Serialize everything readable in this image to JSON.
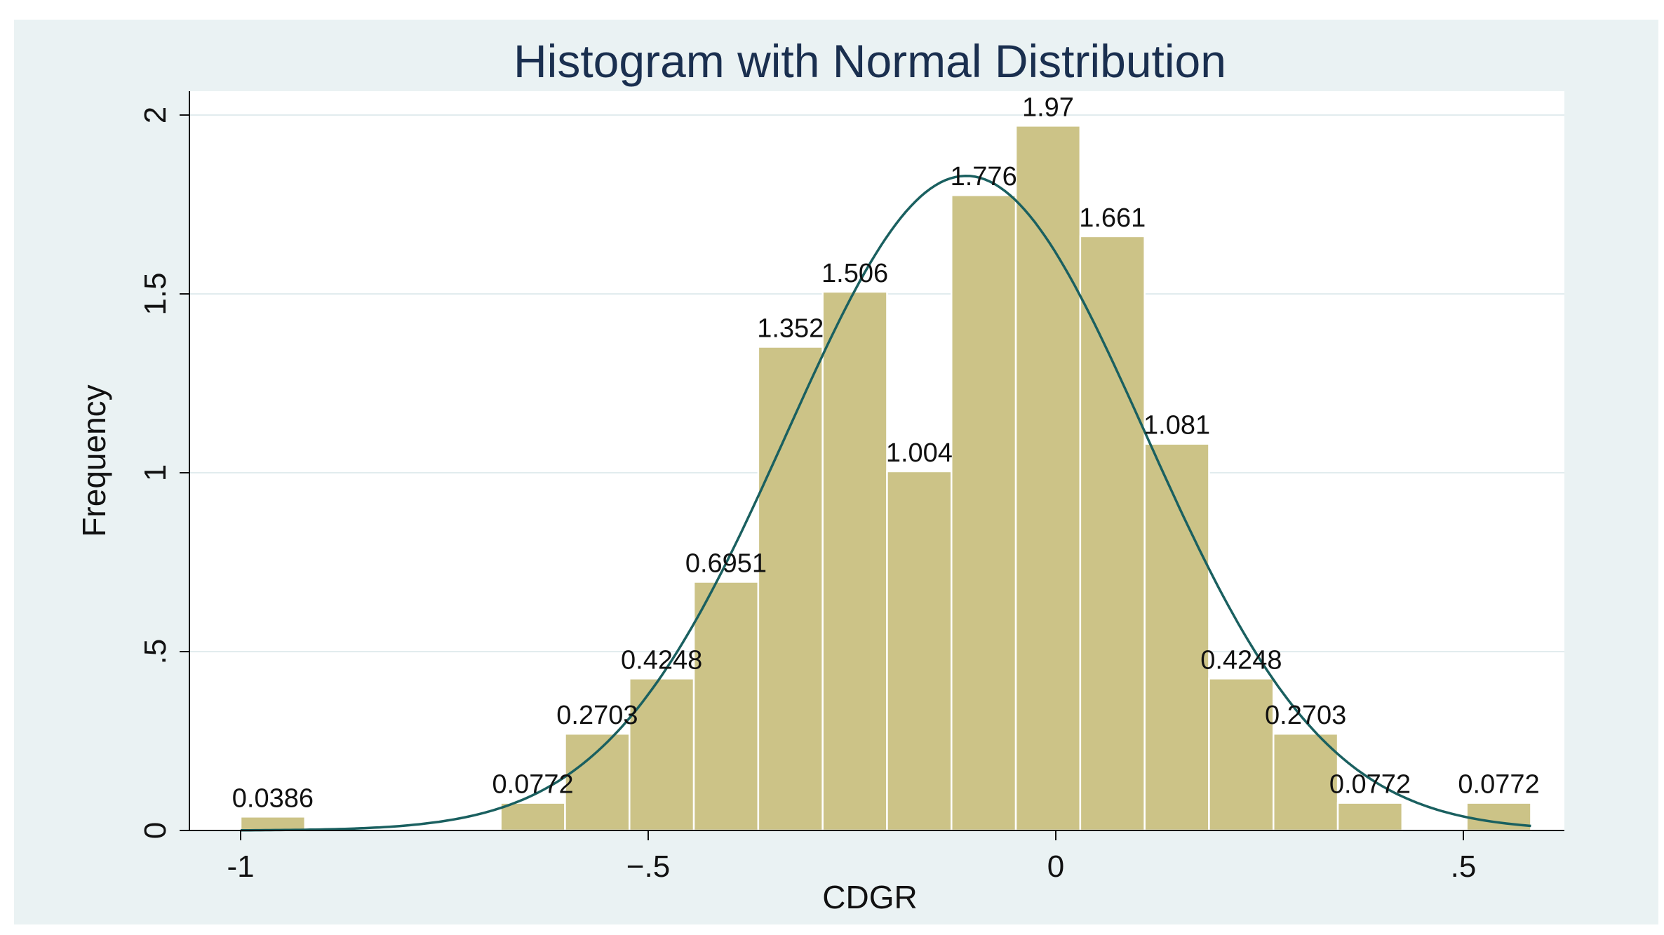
{
  "chart_data": {
    "type": "bar",
    "title": "Histogram with Normal Distribution",
    "xlabel": "CDGR",
    "ylabel": "Frequency",
    "xlim": [
      -1.07,
      0.61
    ],
    "ylim": [
      0,
      2.05
    ],
    "x_ticks": [
      {
        "value": -1,
        "label": "-1"
      },
      {
        "value": -0.5,
        "label": "−.5"
      },
      {
        "value": 0,
        "label": "0"
      },
      {
        "value": 0.5,
        "label": ".5"
      }
    ],
    "y_ticks": [
      {
        "value": 0,
        "label": "0"
      },
      {
        "value": 0.5,
        "label": ".5"
      },
      {
        "value": 1,
        "label": "1"
      },
      {
        "value": 1.5,
        "label": "1.5"
      },
      {
        "value": 2,
        "label": "2"
      }
    ],
    "bins": [
      {
        "start": -1.0,
        "end": -0.921,
        "value": 0.0386,
        "label": "0.0386"
      },
      {
        "start": -0.681,
        "end": -0.602,
        "value": 0.0772,
        "label": "0.0772"
      },
      {
        "start": -0.602,
        "end": -0.523,
        "value": 0.2703,
        "label": "0.2703"
      },
      {
        "start": -0.523,
        "end": -0.444,
        "value": 0.4248,
        "label": "0.4248"
      },
      {
        "start": -0.444,
        "end": -0.365,
        "value": 0.6951,
        "label": "0.6951"
      },
      {
        "start": -0.365,
        "end": -0.286,
        "value": 1.352,
        "label": "1.352"
      },
      {
        "start": -0.286,
        "end": -0.207,
        "value": 1.506,
        "label": "1.506"
      },
      {
        "start": -0.207,
        "end": -0.128,
        "value": 1.004,
        "label": "1.004"
      },
      {
        "start": -0.128,
        "end": -0.049,
        "value": 1.776,
        "label": "1.776"
      },
      {
        "start": -0.049,
        "end": 0.03,
        "value": 1.97,
        "label": "1.97"
      },
      {
        "start": 0.03,
        "end": 0.109,
        "value": 1.661,
        "label": "1.661"
      },
      {
        "start": 0.109,
        "end": 0.188,
        "value": 1.081,
        "label": "1.081"
      },
      {
        "start": 0.188,
        "end": 0.267,
        "value": 0.4248,
        "label": "0.4248"
      },
      {
        "start": 0.267,
        "end": 0.346,
        "value": 0.2703,
        "label": "0.2703"
      },
      {
        "start": 0.346,
        "end": 0.425,
        "value": 0.0772,
        "label": "0.0772"
      },
      {
        "start": 0.504,
        "end": 0.583,
        "value": 0.0772,
        "label": "0.0772"
      }
    ],
    "normal_curve": {
      "mean": -0.11,
      "sd": 0.22,
      "peak": 1.83,
      "x_range": [
        -1.0,
        0.583
      ]
    },
    "grid": true,
    "colors": {
      "bar_fill": "#ccc387",
      "bar_edge": "#ffffff",
      "curve": "#1a6060",
      "plot_bg": "#ffffff",
      "gridline": "#e2ecee",
      "panel_bg": "#eaf2f3"
    }
  }
}
